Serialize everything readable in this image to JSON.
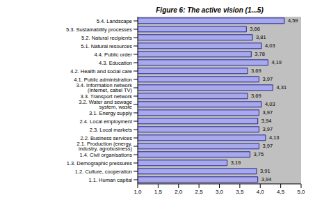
{
  "chart_data": {
    "type": "bar",
    "title": "Figure 6: The active vision (1...5)",
    "orientation": "horizontal",
    "categories": [
      "5.4. Landscape",
      "5.3. Sustainability processes",
      "5.2. Natural recipients",
      "5.1. Natural resources",
      "4.4. Public order",
      "4.3. Education",
      "4.2. Health and social care",
      "4.1. Public administration",
      "3.4. Information network (Internet, cabel TV)",
      "3.3. Transport network",
      "3.2. Water and sewage system, waste",
      "3.1. Energy supply",
      "2.4. Local employment",
      "2.3. Local markets",
      "2.2. Business services",
      "2.1. Production (energy, industry, agrobusiness)",
      "1.4. Civil organisations",
      "1.3. Demographic pressures",
      "1.2. Culture, cooperation",
      "1.1. Human capital"
    ],
    "values": [
      4.59,
      3.66,
      3.81,
      4.03,
      3.78,
      4.19,
      3.69,
      3.97,
      4.31,
      3.69,
      4.03,
      3.97,
      3.94,
      3.97,
      4.13,
      3.97,
      3.75,
      3.19,
      3.91,
      3.94
    ],
    "value_labels": [
      "4,59",
      "3,66",
      "3,81",
      "4,03",
      "3,78",
      "4,19",
      "3,69",
      "3,97",
      "4,31",
      "3,69",
      "4,03",
      "3,97",
      "3,94",
      "3,97",
      "4,13",
      "3,97",
      "3,75",
      "3,19",
      "3,91",
      "3,94"
    ],
    "data_labels": true,
    "color": "#a8a8ec",
    "xlim": [
      1,
      5
    ],
    "xticks": [
      {
        "value": 1,
        "label": "1,0"
      },
      {
        "value": 1.5,
        "label": "1,5"
      },
      {
        "value": 2,
        "label": "2,0"
      },
      {
        "value": 2.5,
        "label": "2,5"
      },
      {
        "value": 3,
        "label": "3,0"
      },
      {
        "value": 3.5,
        "label": "3,5"
      },
      {
        "value": 4,
        "label": "4,0"
      },
      {
        "value": 4.5,
        "label": "4,5"
      },
      {
        "value": 5,
        "label": "5,0"
      }
    ],
    "grid": false
  }
}
